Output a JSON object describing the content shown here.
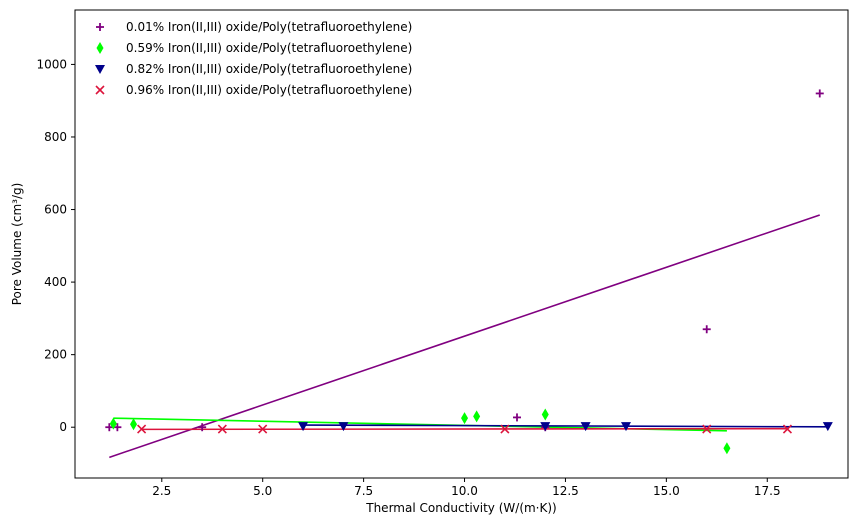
{
  "chart_data": {
    "type": "scatter",
    "title": "",
    "xlabel": "Thermal Conductivity (W/(m·K))",
    "ylabel": "Pore Volume (cm³/g)",
    "xlim": [
      0.35,
      19.5
    ],
    "ylim": [
      -140,
      1150
    ],
    "xticks": [
      2.5,
      5.0,
      7.5,
      10.0,
      12.5,
      15.0,
      17.5
    ],
    "xtick_labels": [
      "2.5",
      "5.0",
      "7.5",
      "10.0",
      "12.5",
      "15.0",
      "17.5"
    ],
    "yticks": [
      0,
      200,
      400,
      600,
      800,
      1000
    ],
    "ytick_labels": [
      "0",
      "200",
      "400",
      "600",
      "800",
      "1000"
    ],
    "grid": false,
    "legend_position": "top-left",
    "series": [
      {
        "name": "0.01% Iron(II,III) oxide/Poly(tetrafluoroethylene)",
        "color": "#800080",
        "marker": "plus",
        "points": [
          [
            1.2,
            0
          ],
          [
            1.4,
            0
          ],
          [
            3.5,
            0
          ],
          [
            11.3,
            27
          ],
          [
            12.0,
            0
          ],
          [
            16.0,
            270
          ],
          [
            18.8,
            920
          ]
        ],
        "fit": [
          [
            1.2,
            -83
          ],
          [
            18.8,
            585
          ]
        ]
      },
      {
        "name": "0.59% Iron(II,III) oxide/Poly(tetrafluoroethylene)",
        "color": "#00ff00",
        "marker": "thin-diamond",
        "points": [
          [
            1.3,
            10
          ],
          [
            1.8,
            8
          ],
          [
            10.0,
            25
          ],
          [
            10.3,
            30
          ],
          [
            12.0,
            35
          ],
          [
            16.5,
            -58
          ]
        ],
        "fit": [
          [
            1.3,
            25
          ],
          [
            16.5,
            -10
          ]
        ]
      },
      {
        "name": "0.82% Iron(II,III) oxide/Poly(tetrafluoroethylene)",
        "color": "#00008b",
        "marker": "triangle-down",
        "points": [
          [
            6.0,
            3
          ],
          [
            7.0,
            3
          ],
          [
            12.0,
            3
          ],
          [
            13.0,
            3
          ],
          [
            14.0,
            3
          ],
          [
            19.0,
            3
          ]
        ],
        "fit": [
          [
            6.0,
            6
          ],
          [
            19.0,
            1
          ]
        ]
      },
      {
        "name": "0.96% Iron(II,III) oxide/Poly(tetrafluoroethylene)",
        "color": "#dc143c",
        "marker": "x",
        "points": [
          [
            2.0,
            -5
          ],
          [
            4.0,
            -5
          ],
          [
            5.0,
            -5
          ],
          [
            11.0,
            -5
          ],
          [
            16.0,
            -5
          ],
          [
            18.0,
            -5
          ]
        ],
        "fit": [
          [
            2.0,
            -6
          ],
          [
            18.0,
            -4
          ]
        ]
      }
    ]
  }
}
